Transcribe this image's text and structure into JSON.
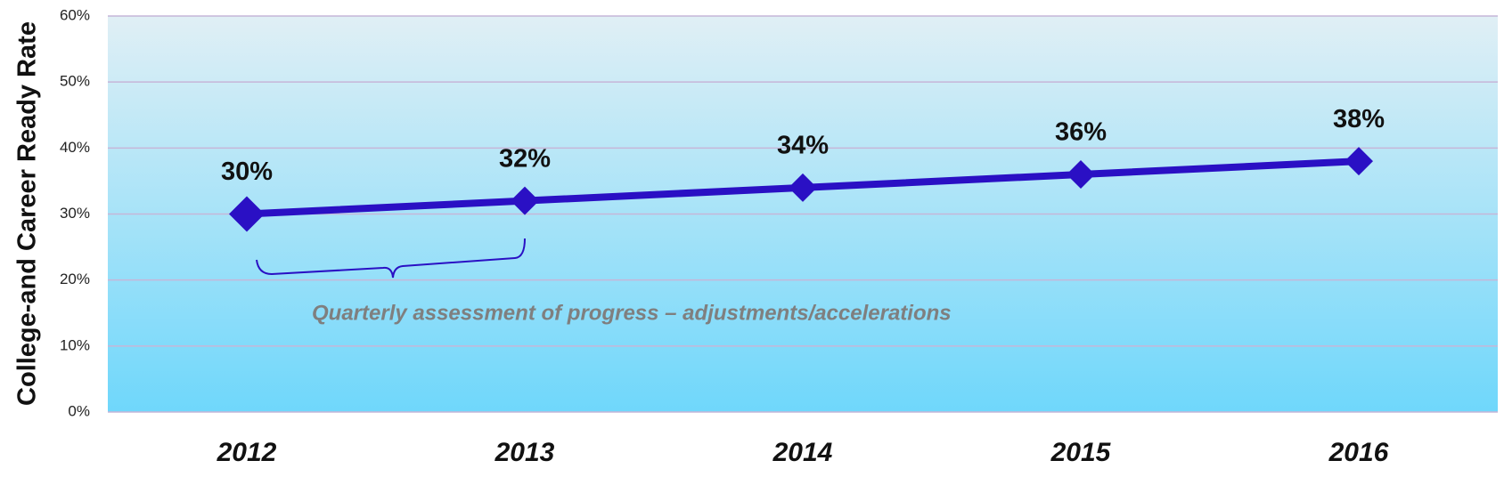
{
  "chart_data": {
    "type": "line",
    "y_axis_label": "College-and Career Ready Rate",
    "annotation": "Quarterly assessment of progress – adjustments/accelerations",
    "categories": [
      "2012",
      "2013",
      "2014",
      "2015",
      "2016"
    ],
    "series": [
      {
        "name": "College-and Career Ready Rate",
        "color": "#2a10c4",
        "values": [
          30,
          32,
          34,
          36,
          38
        ],
        "value_labels": [
          "30%",
          "32%",
          "34%",
          "36%",
          "38%"
        ]
      }
    ],
    "ylim": [
      0,
      60
    ],
    "yticks": [
      {
        "value": 0,
        "label": "0%"
      },
      {
        "value": 10,
        "label": "10%"
      },
      {
        "value": 20,
        "label": "20%"
      },
      {
        "value": 30,
        "label": "30%"
      },
      {
        "value": 40,
        "label": "40%"
      },
      {
        "value": 50,
        "label": "50%"
      },
      {
        "value": 60,
        "label": "60%"
      }
    ],
    "grid": true
  }
}
